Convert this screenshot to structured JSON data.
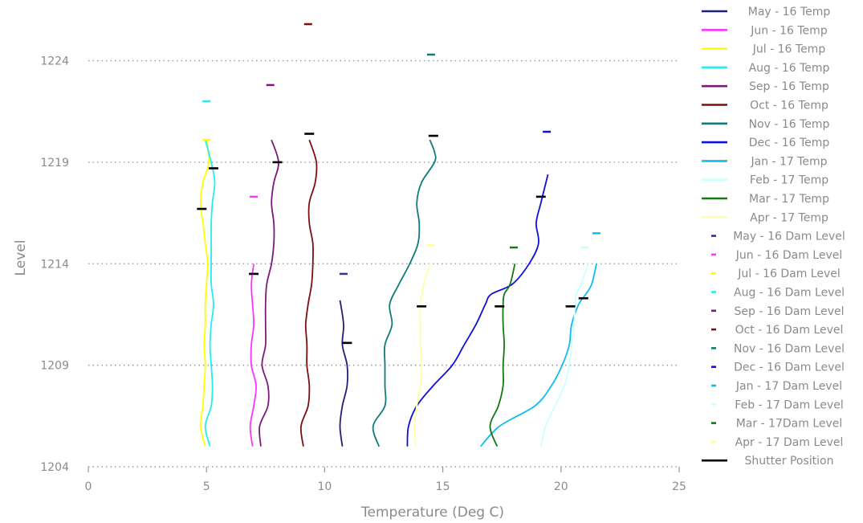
{
  "chart_data": {
    "type": "line",
    "xlabel": "Temperature (Deg C)",
    "ylabel": "Level",
    "xlim": [
      0,
      25
    ],
    "ylim": [
      1204,
      1226
    ],
    "xticks": [
      0,
      5,
      10,
      15,
      20,
      25
    ],
    "yticks": [
      1204,
      1209,
      1214,
      1219,
      1224
    ],
    "grid": "horizontal dotted",
    "legend_position": "right",
    "series": [
      {
        "name": "May - 16 Temp",
        "color": "#1f1f7a",
        "points": [
          [
            10.75,
            1205
          ],
          [
            10.65,
            1206
          ],
          [
            10.75,
            1207
          ],
          [
            10.95,
            1208
          ],
          [
            10.95,
            1209
          ],
          [
            10.75,
            1210
          ],
          [
            10.8,
            1211
          ],
          [
            10.65,
            1212.2
          ]
        ]
      },
      {
        "name": "Jun - 16 Temp",
        "color": "#ff33ff",
        "points": [
          [
            6.95,
            1205
          ],
          [
            6.85,
            1206
          ],
          [
            7.0,
            1207
          ],
          [
            7.1,
            1208
          ],
          [
            6.9,
            1209
          ],
          [
            6.9,
            1210
          ],
          [
            7.0,
            1211
          ],
          [
            6.95,
            1212
          ],
          [
            6.9,
            1213
          ],
          [
            7.0,
            1214
          ]
        ]
      },
      {
        "name": "Jul - 16 Temp",
        "color": "#ffff00",
        "points": [
          [
            4.95,
            1205
          ],
          [
            4.75,
            1206
          ],
          [
            4.85,
            1207
          ],
          [
            4.9,
            1208
          ],
          [
            4.95,
            1209
          ],
          [
            4.9,
            1210
          ],
          [
            4.95,
            1211
          ],
          [
            4.95,
            1212
          ],
          [
            5.0,
            1213
          ],
          [
            5.05,
            1214
          ],
          [
            4.95,
            1215
          ],
          [
            4.85,
            1216
          ],
          [
            4.75,
            1217
          ],
          [
            4.85,
            1218
          ],
          [
            5.1,
            1219
          ],
          [
            5.0,
            1220.1
          ]
        ]
      },
      {
        "name": "Aug - 16 Temp",
        "color": "#22eeee",
        "points": [
          [
            5.15,
            1205
          ],
          [
            4.95,
            1206
          ],
          [
            5.2,
            1207
          ],
          [
            5.25,
            1208
          ],
          [
            5.2,
            1209
          ],
          [
            5.15,
            1210
          ],
          [
            5.2,
            1211
          ],
          [
            5.3,
            1212
          ],
          [
            5.2,
            1213
          ],
          [
            5.2,
            1214
          ],
          [
            5.2,
            1215
          ],
          [
            5.2,
            1216
          ],
          [
            5.25,
            1217
          ],
          [
            5.35,
            1218
          ],
          [
            5.2,
            1219
          ],
          [
            4.95,
            1220.1
          ]
        ]
      },
      {
        "name": "Sep - 16 Temp",
        "color": "#7a1a7a",
        "points": [
          [
            7.3,
            1205
          ],
          [
            7.25,
            1206
          ],
          [
            7.6,
            1207
          ],
          [
            7.6,
            1208
          ],
          [
            7.35,
            1209
          ],
          [
            7.5,
            1210
          ],
          [
            7.5,
            1211
          ],
          [
            7.5,
            1212
          ],
          [
            7.55,
            1213
          ],
          [
            7.75,
            1214
          ],
          [
            7.85,
            1215
          ],
          [
            7.85,
            1216
          ],
          [
            7.75,
            1217
          ],
          [
            7.85,
            1218
          ],
          [
            8.05,
            1219
          ],
          [
            7.75,
            1220.1
          ]
        ]
      },
      {
        "name": "Oct - 16 Temp",
        "color": "#7a1010",
        "points": [
          [
            9.1,
            1205
          ],
          [
            9.0,
            1206
          ],
          [
            9.3,
            1207
          ],
          [
            9.35,
            1208
          ],
          [
            9.25,
            1209
          ],
          [
            9.25,
            1210
          ],
          [
            9.2,
            1211
          ],
          [
            9.3,
            1212
          ],
          [
            9.45,
            1213
          ],
          [
            9.5,
            1214
          ],
          [
            9.5,
            1215
          ],
          [
            9.35,
            1216
          ],
          [
            9.35,
            1217
          ],
          [
            9.6,
            1218
          ],
          [
            9.65,
            1219
          ],
          [
            9.35,
            1220.1
          ]
        ]
      },
      {
        "name": "Nov - 16 Temp",
        "color": "#117a7a",
        "points": [
          [
            12.3,
            1205
          ],
          [
            12.05,
            1206
          ],
          [
            12.55,
            1207
          ],
          [
            12.55,
            1208
          ],
          [
            12.55,
            1209
          ],
          [
            12.55,
            1210
          ],
          [
            12.85,
            1211
          ],
          [
            12.75,
            1212
          ],
          [
            13.15,
            1213
          ],
          [
            13.6,
            1214
          ],
          [
            13.95,
            1215
          ],
          [
            14.0,
            1216
          ],
          [
            13.9,
            1217
          ],
          [
            14.1,
            1218
          ],
          [
            14.65,
            1219
          ],
          [
            14.65,
            1219.5
          ],
          [
            14.45,
            1220.1
          ]
        ]
      },
      {
        "name": "Dec - 16 Temp",
        "color": "#1010dd",
        "points": [
          [
            13.5,
            1205
          ],
          [
            13.55,
            1206
          ],
          [
            13.9,
            1207
          ],
          [
            14.6,
            1208
          ],
          [
            15.4,
            1209
          ],
          [
            15.9,
            1210
          ],
          [
            16.4,
            1211
          ],
          [
            16.8,
            1212
          ],
          [
            17.05,
            1212.5
          ],
          [
            17.95,
            1213
          ],
          [
            18.65,
            1214
          ],
          [
            19.05,
            1215
          ],
          [
            18.95,
            1216
          ],
          [
            19.15,
            1217
          ],
          [
            19.45,
            1218.4
          ]
        ]
      },
      {
        "name": "Jan - 17 Temp",
        "color": "#11bbee",
        "points": [
          [
            16.6,
            1205
          ],
          [
            17.4,
            1206
          ],
          [
            18.9,
            1207
          ],
          [
            19.6,
            1208
          ],
          [
            20.05,
            1209
          ],
          [
            20.35,
            1210
          ],
          [
            20.45,
            1211
          ],
          [
            20.75,
            1212
          ],
          [
            21.05,
            1212.5
          ],
          [
            21.3,
            1213
          ],
          [
            21.5,
            1214
          ]
        ]
      },
      {
        "name": "Feb - 17 Temp",
        "color": "#ccffff",
        "points": [
          [
            19.15,
            1205
          ],
          [
            19.35,
            1206
          ],
          [
            19.75,
            1207
          ],
          [
            20.15,
            1208
          ],
          [
            20.35,
            1209
          ],
          [
            20.45,
            1210
          ],
          [
            20.55,
            1211
          ],
          [
            20.6,
            1212
          ],
          [
            20.65,
            1212.5
          ],
          [
            20.85,
            1213
          ],
          [
            21.15,
            1214
          ]
        ]
      },
      {
        "name": "Mar - 17 Temp",
        "color": "#117a11",
        "points": [
          [
            17.3,
            1205
          ],
          [
            17.0,
            1206
          ],
          [
            17.35,
            1207
          ],
          [
            17.55,
            1208
          ],
          [
            17.55,
            1209
          ],
          [
            17.6,
            1210
          ],
          [
            17.55,
            1211
          ],
          [
            17.55,
            1212
          ],
          [
            17.6,
            1212.5
          ],
          [
            17.85,
            1213
          ],
          [
            18.05,
            1214
          ]
        ]
      },
      {
        "name": "Apr - 17 Temp",
        "color": "#ffffaa",
        "points": [
          [
            13.85,
            1205
          ],
          [
            13.8,
            1206
          ],
          [
            13.9,
            1207
          ],
          [
            14.05,
            1208
          ],
          [
            14.1,
            1209
          ],
          [
            14.05,
            1210
          ],
          [
            14.05,
            1211
          ],
          [
            14.05,
            1212
          ],
          [
            14.2,
            1213
          ],
          [
            14.45,
            1214
          ]
        ]
      }
    ],
    "dam_levels": [
      {
        "name": "May - 16 Dam Level",
        "color": "#333388",
        "x": 10.8,
        "y": 1213.5
      },
      {
        "name": "Jun - 16 Dam Level",
        "color": "#ff33ff",
        "x": 7.0,
        "y": 1217.3
      },
      {
        "name": "Jul - 16 Dam Level",
        "color": "#ffff00",
        "x": 5.0,
        "y": 1220.1
      },
      {
        "name": "Aug - 16 Dam Level",
        "color": "#22eeee",
        "x": 5.0,
        "y": 1222.0
      },
      {
        "name": "Sep - 16 Dam Level",
        "color": "#7a1a7a",
        "x": 7.7,
        "y": 1222.8
      },
      {
        "name": "Oct - 16 Dam Level",
        "color": "#7a1010",
        "x": 9.3,
        "y": 1225.8
      },
      {
        "name": "Nov - 16 Dam Level",
        "color": "#117a6a",
        "x": 14.5,
        "y": 1224.3
      },
      {
        "name": "Dec - 16 Dam Level",
        "color": "#1010dd",
        "x": 19.4,
        "y": 1220.5
      },
      {
        "name": "Jan - 17 Dam Level",
        "color": "#11bbee",
        "x": 21.5,
        "y": 1215.5
      },
      {
        "name": "Feb - 17 Dam Level",
        "color": "#ccffff",
        "x": 21.0,
        "y": 1214.8
      },
      {
        "name": "Mar - 17Dam Level",
        "color": "#117a11",
        "x": 18.0,
        "y": 1214.8
      },
      {
        "name": "Apr - 17 Dam Level",
        "color": "#ffff99",
        "x": 14.5,
        "y": 1214.9
      }
    ],
    "shutter_positions": {
      "name": "Shutter Position",
      "color": "#000000",
      "points": [
        [
          4.8,
          1216.7
        ],
        [
          5.3,
          1218.7
        ],
        [
          7.0,
          1213.5
        ],
        [
          8.0,
          1219.0
        ],
        [
          9.35,
          1220.4
        ],
        [
          10.95,
          1210.1
        ],
        [
          14.1,
          1211.9
        ],
        [
          14.6,
          1220.3
        ],
        [
          17.4,
          1211.9
        ],
        [
          19.15,
          1217.3
        ],
        [
          20.4,
          1211.9
        ],
        [
          20.95,
          1212.3
        ]
      ]
    }
  }
}
